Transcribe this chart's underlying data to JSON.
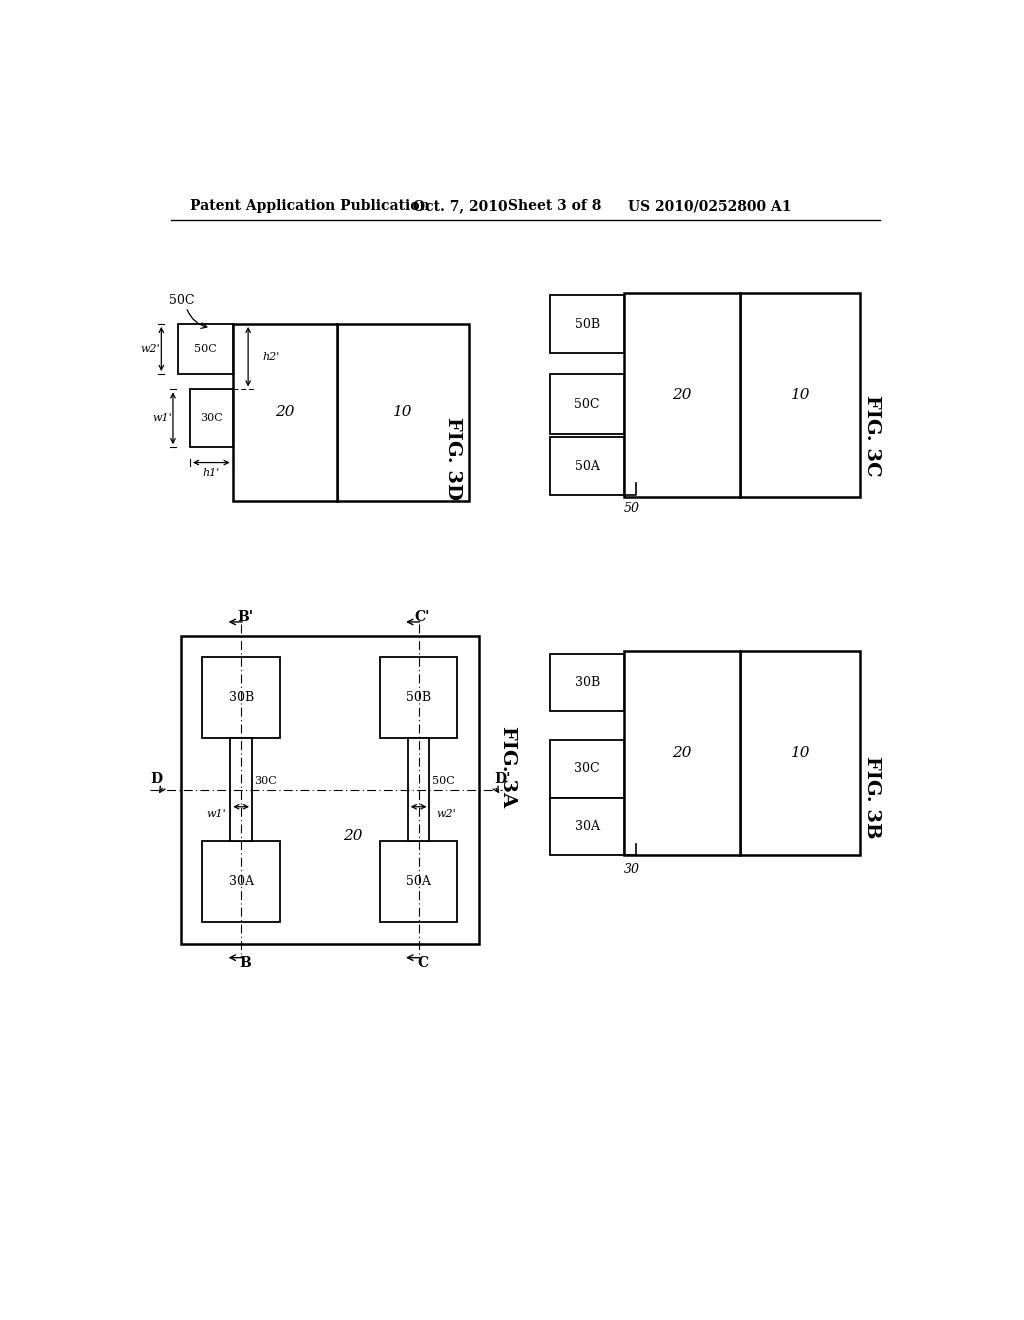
{
  "bg_color": "#ffffff",
  "header_left": "Patent Application Publication",
  "header_date": "Oct. 7, 2010",
  "header_sheet": "Sheet 3 of 8",
  "header_right": "US 2010/0252800 A1",
  "fig_label_3A": "FIG. 3A",
  "fig_label_3B": "FIG. 3B",
  "fig_label_3C": "FIG. 3C",
  "fig_label_3D": "FIG. 3D"
}
